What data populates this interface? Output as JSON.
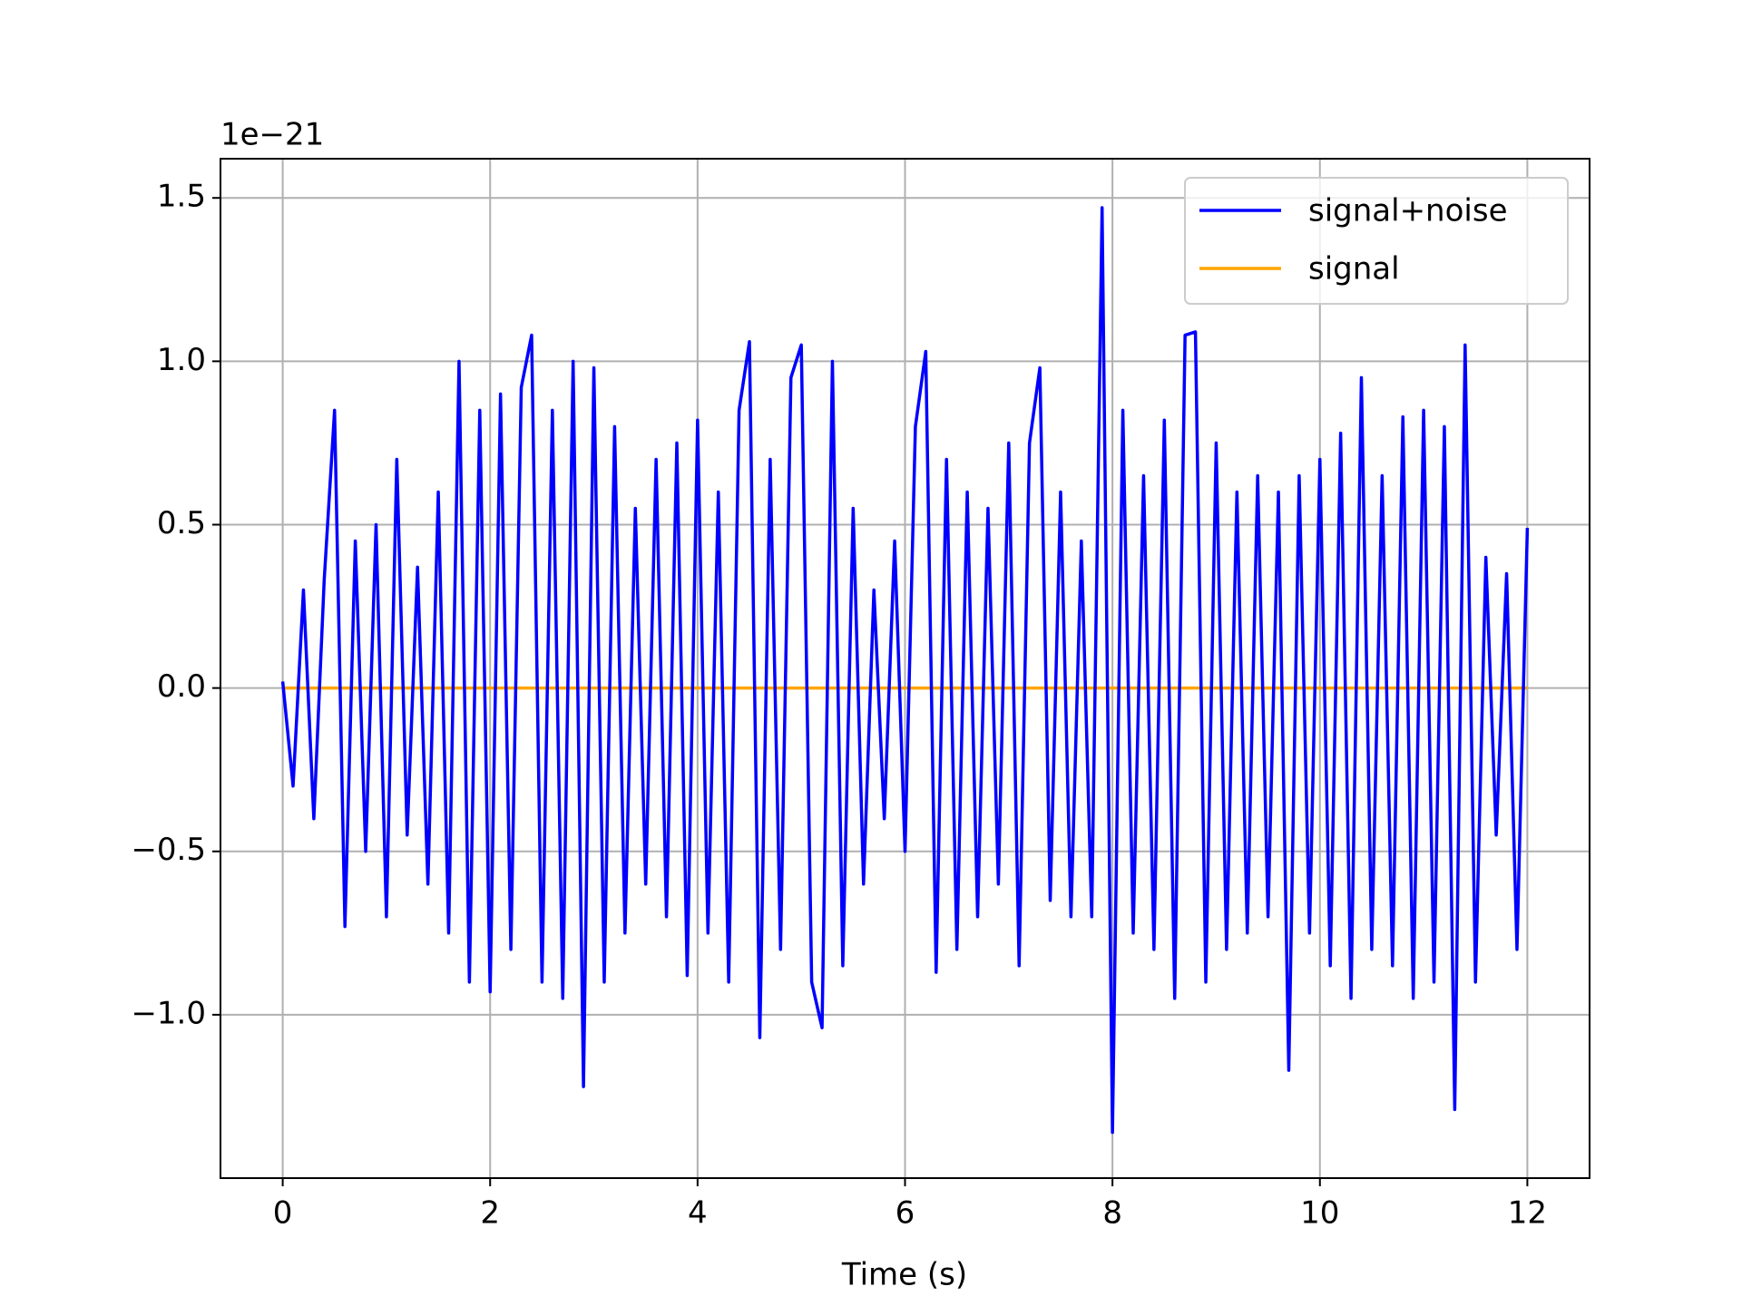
{
  "chart_data": {
    "type": "line",
    "x_label": "Time (s)",
    "offset_label": "1e−21",
    "x": [
      0,
      0.1,
      0.2,
      0.3,
      0.4,
      0.5,
      0.6,
      0.7,
      0.8,
      0.9,
      1,
      1.1,
      1.2,
      1.3,
      1.4,
      1.5,
      1.6,
      1.7,
      1.8,
      1.9,
      2,
      2.1,
      2.2,
      2.3,
      2.4,
      2.5,
      2.6,
      2.7,
      2.8,
      2.9,
      3,
      3.1,
      3.2,
      3.3,
      3.4,
      3.5,
      3.6,
      3.7,
      3.8,
      3.9,
      4,
      4.1,
      4.2,
      4.3,
      4.4,
      4.5,
      4.6,
      4.7,
      4.8,
      4.9,
      5,
      5.1,
      5.2,
      5.3,
      5.4,
      5.5,
      5.6,
      5.7,
      5.8,
      5.9,
      6,
      6.1,
      6.2,
      6.3,
      6.4,
      6.5,
      6.6,
      6.7,
      6.8,
      6.9,
      7,
      7.1,
      7.2,
      7.3,
      7.4,
      7.5,
      7.6,
      7.7,
      7.8,
      7.9,
      8,
      8.1,
      8.2,
      8.3,
      8.4,
      8.5,
      8.6,
      8.7,
      8.8,
      8.9,
      9,
      9.1,
      9.2,
      9.3,
      9.4,
      9.5,
      9.6,
      9.7,
      9.8,
      9.9,
      10,
      10.1,
      10.2,
      10.3,
      10.4,
      10.5,
      10.6,
      10.7,
      10.8,
      10.9,
      11,
      11.1,
      11.2,
      11.3,
      11.4,
      11.5,
      11.6,
      11.7,
      11.8,
      11.9,
      12
    ],
    "series": [
      {
        "name": "signal+noise",
        "color": "#0000ff",
        "values": [
          0.02,
          -0.3,
          0.3,
          -0.4,
          0.33,
          0.85,
          -0.73,
          0.45,
          -0.5,
          0.5,
          -0.7,
          0.7,
          -0.45,
          0.37,
          -0.6,
          0.6,
          -0.75,
          1.0,
          -0.9,
          0.85,
          -0.93,
          0.9,
          -0.8,
          0.92,
          1.08,
          -0.9,
          0.85,
          -0.95,
          1.0,
          -1.22,
          0.98,
          -0.9,
          0.8,
          -0.75,
          0.55,
          -0.6,
          0.7,
          -0.7,
          0.75,
          -0.88,
          0.82,
          -0.75,
          0.6,
          -0.9,
          0.85,
          1.06,
          -1.07,
          0.7,
          -0.8,
          0.95,
          1.05,
          -0.9,
          -1.04,
          1.0,
          -0.85,
          0.55,
          -0.6,
          0.3,
          -0.4,
          0.45,
          -0.5,
          0.8,
          1.03,
          -0.87,
          0.7,
          -0.8,
          0.6,
          -0.7,
          0.55,
          -0.6,
          0.75,
          -0.85,
          0.75,
          0.98,
          -0.65,
          0.6,
          -0.7,
          0.45,
          -0.7,
          1.47,
          -1.36,
          0.85,
          -0.75,
          0.65,
          -0.8,
          0.82,
          -0.95,
          1.08,
          1.09,
          -0.9,
          0.75,
          -0.8,
          0.6,
          -0.75,
          0.65,
          -0.7,
          0.6,
          -1.17,
          0.65,
          -0.75,
          0.7,
          -0.85,
          0.78,
          -0.95,
          0.95,
          -0.8,
          0.65,
          -0.85,
          0.83,
          -0.95,
          0.85,
          -0.9,
          0.8,
          -1.29,
          1.05,
          -0.9,
          0.4,
          -0.45,
          0.35,
          -0.8,
          0.49
        ]
      },
      {
        "name": "signal",
        "color": "#ffa500",
        "values": [
          0,
          0,
          0,
          0,
          0,
          0,
          0,
          0,
          0,
          0,
          0,
          0,
          0,
          0,
          0,
          0,
          0,
          0,
          0,
          0,
          0,
          0,
          0,
          0,
          0,
          0,
          0,
          0,
          0,
          0,
          0,
          0,
          0,
          0,
          0,
          0,
          0,
          0,
          0,
          0,
          0,
          0,
          0,
          0,
          0,
          0,
          0,
          0,
          0,
          0,
          0,
          0,
          0,
          0,
          0,
          0,
          0,
          0,
          0,
          0,
          0,
          0,
          0,
          0,
          0,
          0,
          0,
          0,
          0,
          0,
          0,
          0,
          0,
          0,
          0,
          0,
          0,
          0,
          0,
          0,
          0,
          0,
          0,
          0,
          0,
          0,
          0,
          0,
          0,
          0,
          0,
          0,
          0,
          0,
          0,
          0,
          0,
          0,
          0,
          0,
          0,
          0,
          0,
          0,
          0,
          0,
          0,
          0,
          0,
          0,
          0,
          0,
          0,
          0,
          0,
          0,
          0,
          0,
          0,
          0,
          0
        ]
      }
    ],
    "xlim": [
      -0.6,
      12.6
    ],
    "xticks": [
      0,
      2,
      4,
      6,
      8,
      10,
      12
    ],
    "ylim": [
      -1.5,
      1.62
    ],
    "yticks": [
      {
        "value": -1.0,
        "label": "−1.0"
      },
      {
        "value": -0.5,
        "label": "−0.5"
      },
      {
        "value": 0,
        "label": "0.0"
      },
      {
        "value": 0.5,
        "label": "0.5"
      },
      {
        "value": 1.0,
        "label": "1.0"
      },
      {
        "value": 1.5,
        "label": "1.5"
      }
    ],
    "grid": true,
    "legend": "upper right"
  }
}
